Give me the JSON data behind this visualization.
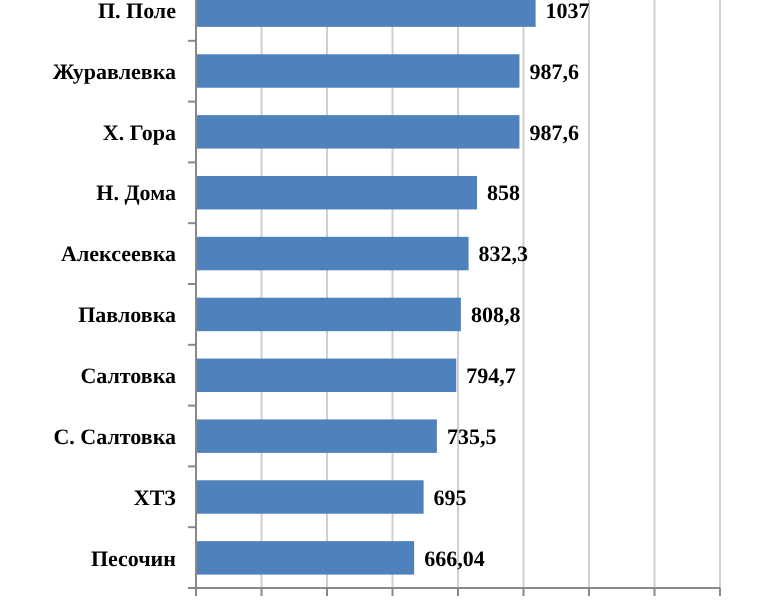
{
  "chart_data": {
    "type": "bar",
    "orientation": "horizontal",
    "categories": [
      "П. Поле",
      "Журавлевка",
      "Х. Гора",
      "Н. Дома",
      "Алексеевка",
      "Павловка",
      "Салтовка",
      "С. Салтовка",
      "ХТЗ",
      "Песочин"
    ],
    "values": [
      1037,
      987.6,
      987.6,
      858,
      832.3,
      808.8,
      794.7,
      735.5,
      695,
      666.04
    ],
    "value_labels": [
      "1037",
      "987,6",
      "987,6",
      "858",
      "832,3",
      "808,8",
      "794,7",
      "735,5",
      "695",
      "666,04"
    ],
    "color": "#4f81bd",
    "xlim": [
      0,
      1600
    ],
    "xticks": [
      {
        "value": 0,
        "label": null
      },
      {
        "value": 200,
        "label": null
      },
      {
        "value": 400,
        "label": null
      },
      {
        "value": 600,
        "label": null
      },
      {
        "value": 800,
        "label": null
      },
      {
        "value": 1000,
        "label": null
      },
      {
        "value": 1200,
        "label": null
      },
      {
        "value": 1400,
        "label": null
      },
      {
        "value": 1600,
        "label": null
      }
    ],
    "tick_labels": "y",
    "grid": "x"
  }
}
